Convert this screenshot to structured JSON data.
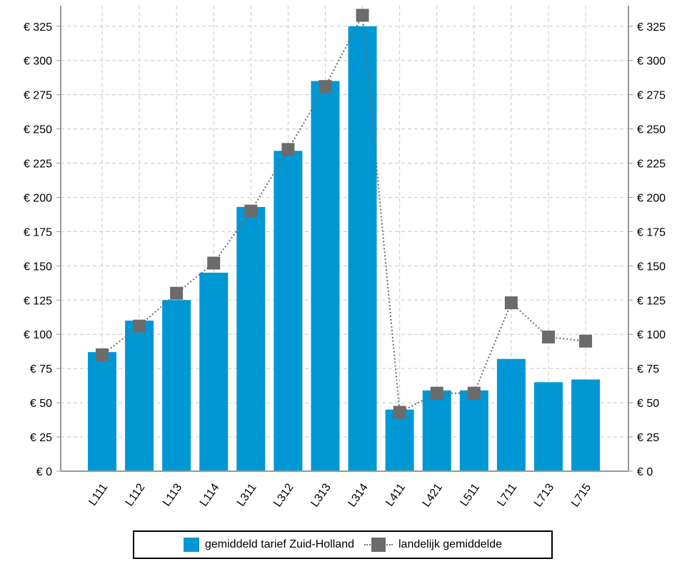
{
  "colors": {
    "bar": "#0098d4",
    "line": "#6b6b6b",
    "grid": "#c8c8c8",
    "axis": "#999999"
  },
  "chart_data": {
    "type": "bar",
    "categories": [
      "L111",
      "L112",
      "L113",
      "L114",
      "L311",
      "L312",
      "L313",
      "L314",
      "L411",
      "L421",
      "L511",
      "L711",
      "L713",
      "L715"
    ],
    "series": [
      {
        "name": "gemiddeld tarief Zuid-Holland",
        "type": "bar",
        "values": [
          87,
          110,
          125,
          145,
          193,
          234,
          285,
          325,
          45,
          59,
          59,
          82,
          65,
          67
        ]
      },
      {
        "name": "landelijk gemiddelde",
        "type": "line",
        "values": [
          85,
          106,
          130,
          152,
          190,
          235,
          281,
          333,
          43,
          57,
          57,
          123,
          98,
          95
        ]
      }
    ],
    "ylim": [
      0,
      340
    ],
    "yticks": [
      0,
      25,
      50,
      75,
      100,
      125,
      150,
      175,
      200,
      225,
      250,
      275,
      300,
      325
    ],
    "ytick_labels": [
      "€ 0",
      "€ 25",
      "€ 50",
      "€ 75",
      "€ 100",
      "€ 125",
      "€ 150",
      "€ 175",
      "€ 200",
      "€ 225",
      "€ 250",
      "€ 275",
      "€ 300",
      "€ 325"
    ],
    "grid": true,
    "legend_position": "bottom",
    "dual_axis_labels": true
  }
}
